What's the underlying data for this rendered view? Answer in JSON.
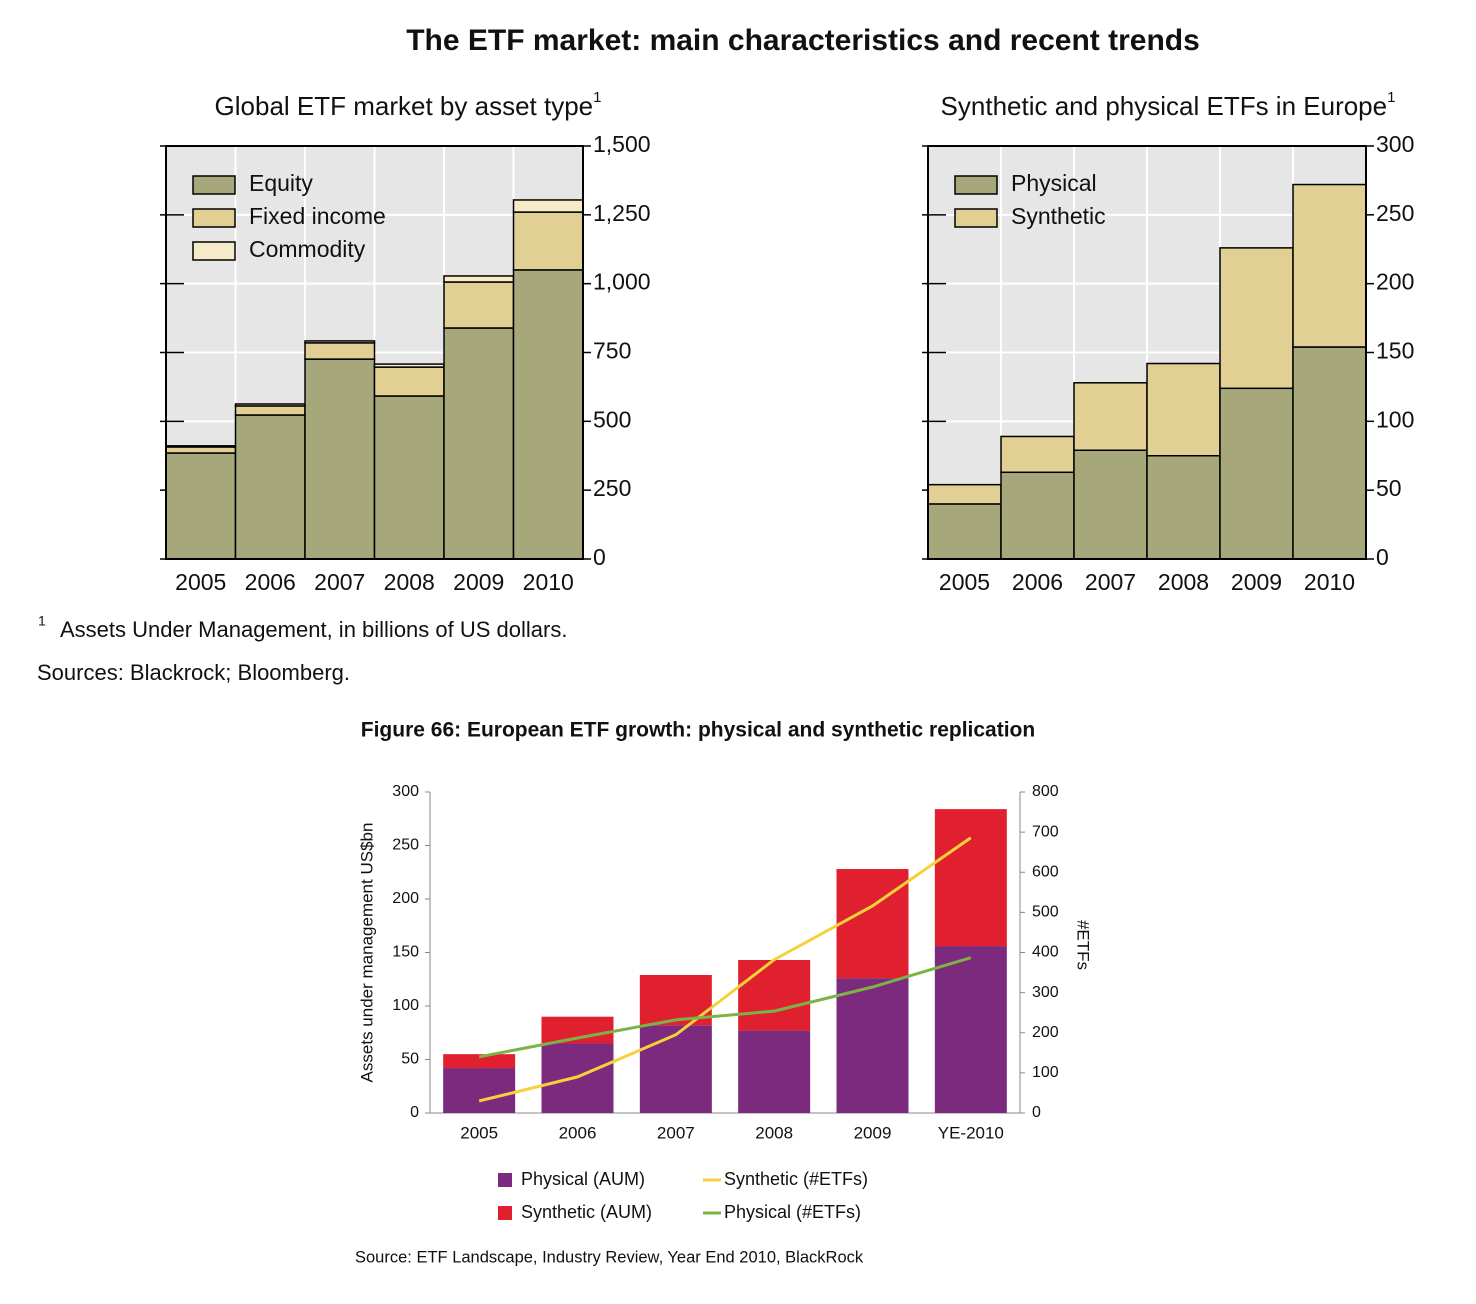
{
  "title": "The ETF market: main characteristics and recent trends",
  "footnote": {
    "marker": "1",
    "text": "Assets Under Management, in billions of US dollars."
  },
  "sources": "Sources: Blackrock; Bloomberg.",
  "figure_title": "Figure 66: European ETF growth: physical and synthetic replication",
  "figure_source": "Source: ETF Landscape, Industry Review, Year End 2010, BlackRock",
  "chart_data": [
    {
      "type": "stacked_bar",
      "title": "Global ETF market by asset type",
      "title_marker": "1",
      "categories": [
        "2005",
        "2006",
        "2007",
        "2008",
        "2009",
        "2010"
      ],
      "series": [
        {
          "name": "Equity",
          "color": "#a6a77a",
          "values": [
            385,
            523,
            726,
            592,
            839,
            1050
          ]
        },
        {
          "name": "Fixed income",
          "color": "#e2cf94",
          "values": [
            22,
            33,
            59,
            105,
            167,
            210
          ]
        },
        {
          "name": "Commodity",
          "color": "#f6ebc8",
          "values": [
            4,
            7,
            7,
            11,
            22,
            44
          ]
        }
      ],
      "ylim": [
        0,
        1500
      ],
      "yticks": [
        0,
        250,
        500,
        750,
        {
          "value": 1000,
          "label": "1,000"
        },
        {
          "value": 1250,
          "label": "1,250"
        },
        {
          "value": 1500,
          "label": "1,500"
        }
      ],
      "grid": true,
      "legend": "top-left"
    },
    {
      "type": "stacked_bar",
      "title": "Synthetic and physical ETFs in Europe",
      "title_marker": "1",
      "categories": [
        "2005",
        "2006",
        "2007",
        "2008",
        "2009",
        "2010"
      ],
      "series": [
        {
          "name": "Physical",
          "color": "#a6a77a",
          "values": [
            40,
            63,
            79,
            75,
            124,
            154
          ]
        },
        {
          "name": "Synthetic",
          "color": "#e2cf94",
          "values": [
            14,
            26,
            49,
            67,
            102,
            118
          ]
        }
      ],
      "ylim": [
        0,
        300
      ],
      "yticks": [
        0,
        50,
        100,
        150,
        200,
        250,
        300
      ],
      "grid": true,
      "legend": "top-left"
    },
    {
      "type": "combo",
      "y_label": "Assets under management US$bn",
      "y2_label": "#ETFs",
      "categories": [
        "2005",
        "2006",
        "2007",
        "2008",
        "2009",
        "YE-2010"
      ],
      "series": [
        {
          "name": "Physical (AUM)",
          "kind": "bar",
          "color": "#7b2a7d",
          "values": [
            42,
            65,
            82,
            77,
            126,
            156
          ]
        },
        {
          "name": "Synthetic (AUM)",
          "kind": "bar",
          "color": "#e0202e",
          "values": [
            13,
            25,
            47,
            66,
            102,
            128
          ]
        },
        {
          "name": "Synthetic (#ETFs)",
          "kind": "line",
          "axis": "y2",
          "color": "#f5d13c",
          "values": [
            30,
            90,
            195,
            382,
            516,
            686
          ]
        },
        {
          "name": "Physical (#ETFs)",
          "kind": "line",
          "axis": "y2",
          "color": "#7db346",
          "values": [
            140,
            187,
            232,
            254,
            314,
            387
          ]
        }
      ],
      "ylim": [
        0,
        300
      ],
      "yticks": [
        0,
        50,
        100,
        150,
        200,
        250,
        300
      ],
      "y2lim": [
        0,
        800
      ],
      "y2ticks": [
        0,
        100,
        200,
        300,
        400,
        500,
        600,
        700,
        800
      ],
      "legend": "bottom"
    }
  ]
}
